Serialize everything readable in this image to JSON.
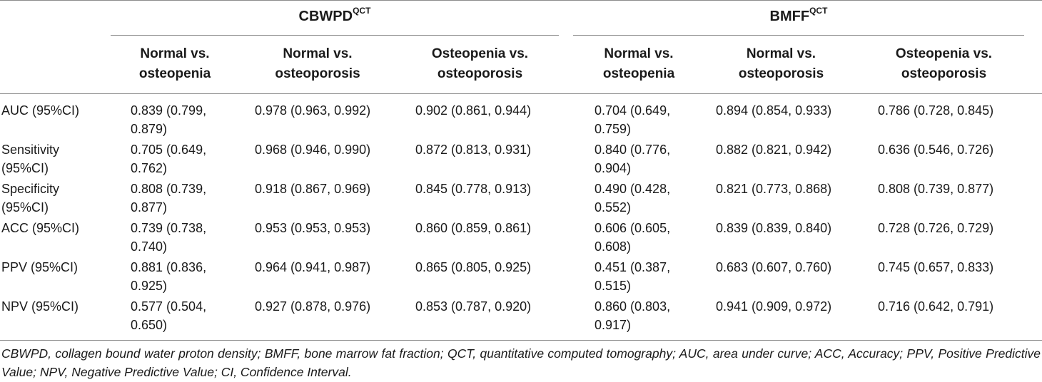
{
  "table": {
    "groups": [
      {
        "name": "CBWPD",
        "sup": "QCT"
      },
      {
        "name": "BMFF",
        "sup": "QCT"
      }
    ],
    "subheaders": [
      [
        "Normal vs.",
        "osteopenia"
      ],
      [
        "Normal vs.",
        "osteoporosis"
      ],
      [
        "Osteopenia vs.",
        "osteoporosis"
      ],
      [
        "Normal vs.",
        "osteopenia"
      ],
      [
        "Normal vs.",
        "osteoporosis"
      ],
      [
        "Osteopenia vs.",
        "osteoporosis"
      ]
    ],
    "rows": [
      {
        "label": [
          "AUC (95%CI)"
        ],
        "cells": [
          [
            "0.839 (0.799,",
            "0.879)"
          ],
          [
            "0.978 (0.963, 0.992)"
          ],
          [
            "0.902 (0.861, 0.944)"
          ],
          [
            "0.704 (0.649,",
            "0.759)"
          ],
          [
            "0.894 (0.854, 0.933)"
          ],
          [
            "0.786 (0.728, 0.845)"
          ]
        ]
      },
      {
        "label": [
          "Sensitivity",
          "(95%CI)"
        ],
        "cells": [
          [
            "0.705 (0.649,",
            "0.762)"
          ],
          [
            "0.968 (0.946, 0.990)"
          ],
          [
            "0.872 (0.813, 0.931)"
          ],
          [
            "0.840 (0.776,",
            "0.904)"
          ],
          [
            "0.882 (0.821, 0.942)"
          ],
          [
            "0.636 (0.546, 0.726)"
          ]
        ]
      },
      {
        "label": [
          "Specificity",
          "(95%CI)"
        ],
        "cells": [
          [
            "0.808 (0.739,",
            "0.877)"
          ],
          [
            "0.918 (0.867, 0.969)"
          ],
          [
            "0.845 (0.778, 0.913)"
          ],
          [
            "0.490 (0.428,",
            "0.552)"
          ],
          [
            "0.821 (0.773, 0.868)"
          ],
          [
            "0.808 (0.739, 0.877)"
          ]
        ]
      },
      {
        "label": [
          "ACC (95%CI)"
        ],
        "cells": [
          [
            "0.739 (0.738,",
            "0.740)"
          ],
          [
            "0.953 (0.953, 0.953)"
          ],
          [
            "0.860 (0.859, 0.861)"
          ],
          [
            "0.606 (0.605,",
            "0.608)"
          ],
          [
            "0.839 (0.839, 0.840)"
          ],
          [
            "0.728 (0.726, 0.729)"
          ]
        ]
      },
      {
        "label": [
          "PPV (95%CI)"
        ],
        "cells": [
          [
            "0.881 (0.836,",
            "0.925)"
          ],
          [
            "0.964 (0.941, 0.987)"
          ],
          [
            "0.865 (0.805, 0.925)"
          ],
          [
            "0.451 (0.387,",
            "0.515)"
          ],
          [
            "0.683 (0.607, 0.760)"
          ],
          [
            "0.745 (0.657, 0.833)"
          ]
        ]
      },
      {
        "label": [
          "NPV (95%CI)"
        ],
        "cells": [
          [
            "0.577 (0.504,",
            "0.650)"
          ],
          [
            "0.927 (0.878, 0.976)"
          ],
          [
            "0.853 (0.787, 0.920)"
          ],
          [
            "0.860 (0.803,",
            "0.917)"
          ],
          [
            "0.941 (0.909, 0.972)"
          ],
          [
            "0.716 (0.642, 0.791)"
          ]
        ]
      }
    ],
    "footnote": "CBWPD, collagen bound water proton density; BMFF, bone marrow fat fraction; QCT, quantitative computed tomography; AUC, area under curve; ACC, Accuracy; PPV, Positive Predictive Value; NPV, Negative Predictive Value; CI, Confidence Interval."
  }
}
